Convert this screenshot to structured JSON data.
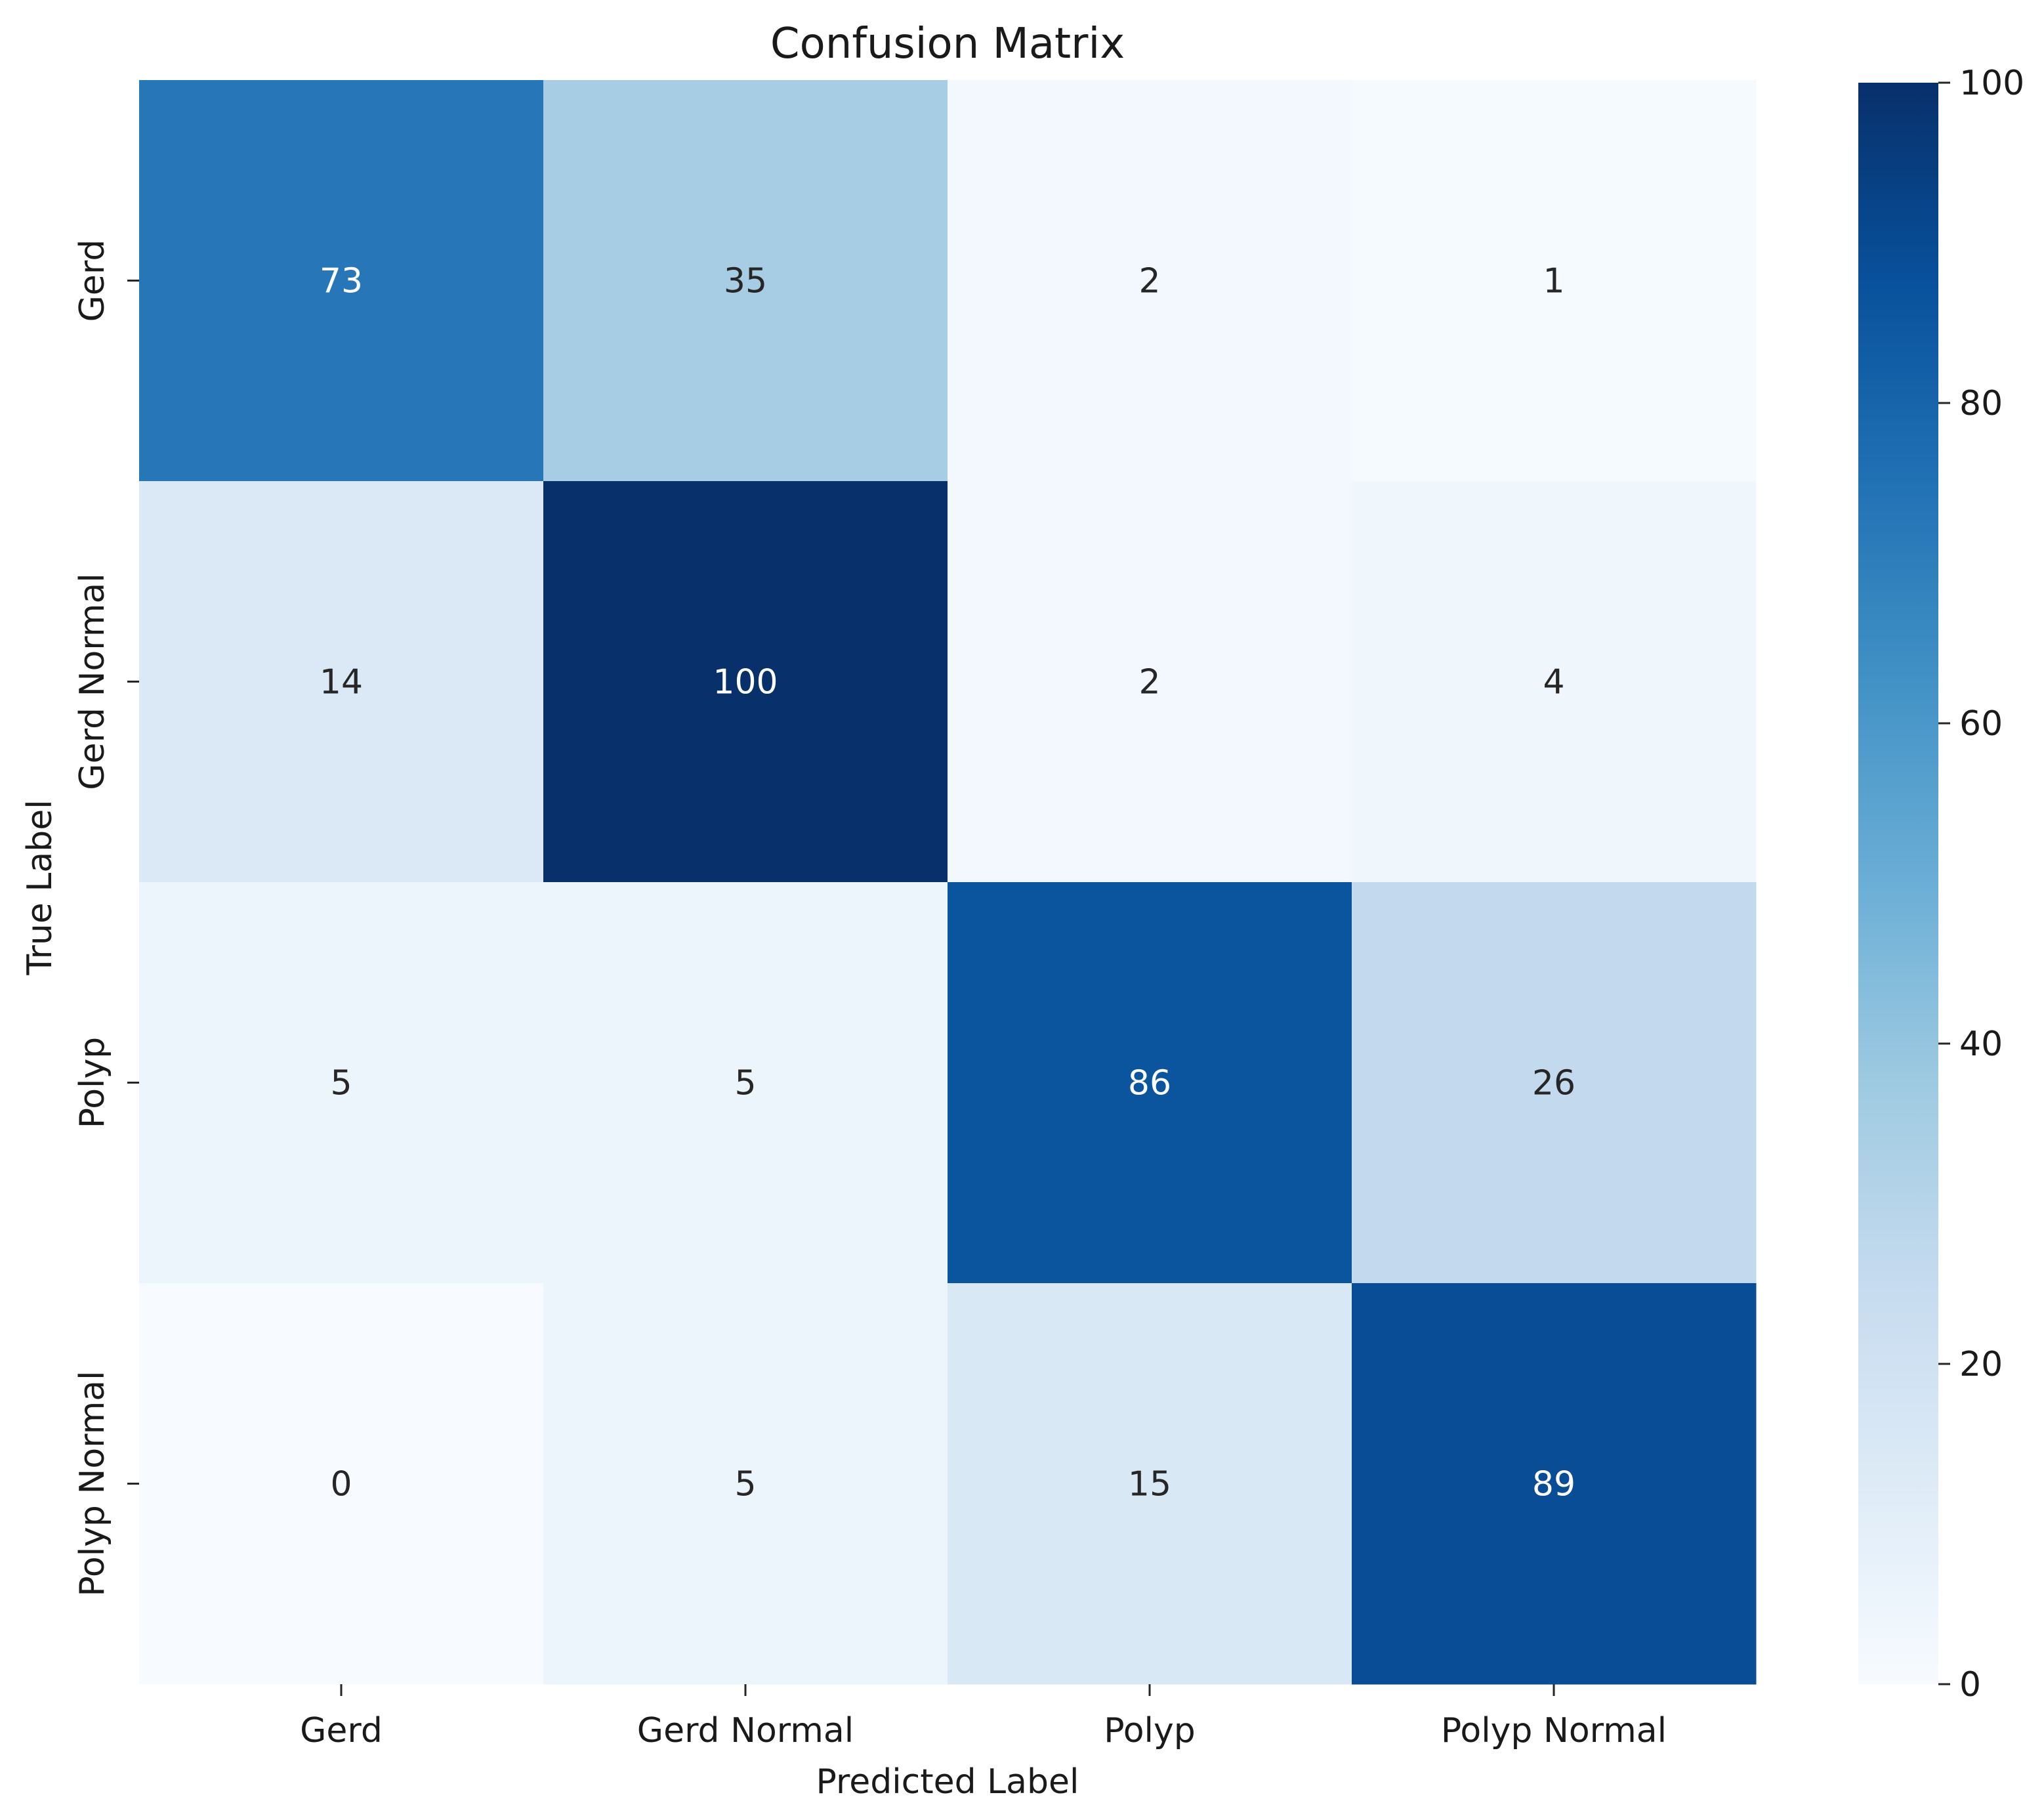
{
  "chart_data": {
    "type": "heatmap",
    "title": "Confusion Matrix",
    "xlabel": "Predicted Label",
    "ylabel": "True Label",
    "x_categories": [
      "Gerd",
      "Gerd Normal",
      "Polyp",
      "Polyp Normal"
    ],
    "y_categories": [
      "Gerd",
      "Gerd Normal",
      "Polyp",
      "Polyp Normal"
    ],
    "values": [
      [
        73,
        35,
        2,
        1
      ],
      [
        14,
        100,
        2,
        4
      ],
      [
        5,
        5,
        86,
        26
      ],
      [
        0,
        5,
        15,
        89
      ]
    ],
    "colormap": "Blues",
    "vmin": 0,
    "vmax": 100,
    "colorbar_ticks": [
      0,
      20,
      40,
      60,
      80,
      100
    ],
    "colorbar_tick_labels": [
      "0",
      "20",
      "40",
      "60",
      "80",
      "100"
    ]
  }
}
